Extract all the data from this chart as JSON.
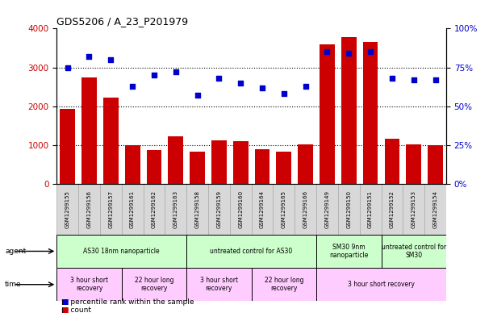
{
  "title": "GDS5206 / A_23_P201979",
  "samples": [
    "GSM1299155",
    "GSM1299156",
    "GSM1299157",
    "GSM1299161",
    "GSM1299162",
    "GSM1299163",
    "GSM1299158",
    "GSM1299159",
    "GSM1299160",
    "GSM1299164",
    "GSM1299165",
    "GSM1299166",
    "GSM1299149",
    "GSM1299150",
    "GSM1299151",
    "GSM1299152",
    "GSM1299153",
    "GSM1299154"
  ],
  "counts": [
    1930,
    2750,
    2220,
    990,
    870,
    1220,
    820,
    1130,
    1100,
    900,
    820,
    1010,
    3600,
    3780,
    3660,
    1160,
    1010,
    990
  ],
  "percentiles": [
    75,
    82,
    80,
    63,
    70,
    72,
    57,
    68,
    65,
    62,
    58,
    63,
    85,
    84,
    85,
    68,
    67,
    67
  ],
  "bar_color": "#cc0000",
  "dot_color": "#0000cc",
  "left_ylim": [
    0,
    4000
  ],
  "right_ylim": [
    0,
    100
  ],
  "left_yticks": [
    0,
    1000,
    2000,
    3000,
    4000
  ],
  "right_yticks": [
    0,
    25,
    50,
    75,
    100
  ],
  "right_yticklabels": [
    "0%",
    "25%",
    "50%",
    "75%",
    "100%"
  ],
  "agent_groups": [
    {
      "label": "AS30 18nm nanoparticle",
      "start": 0,
      "end": 5,
      "color": "#ccffcc"
    },
    {
      "label": "untreated control for AS30",
      "start": 6,
      "end": 11,
      "color": "#ccffcc"
    },
    {
      "label": "SM30 9nm\nnanoparticle",
      "start": 12,
      "end": 14,
      "color": "#ccffcc"
    },
    {
      "label": "untreated control for\nSM30",
      "start": 15,
      "end": 17,
      "color": "#ccffcc"
    }
  ],
  "time_groups": [
    {
      "label": "3 hour short\nrecovery",
      "start": 0,
      "end": 2,
      "color": "#ffccff"
    },
    {
      "label": "22 hour long\nrecovery",
      "start": 3,
      "end": 5,
      "color": "#ffccff"
    },
    {
      "label": "3 hour short\nrecovery",
      "start": 6,
      "end": 8,
      "color": "#ffccff"
    },
    {
      "label": "22 hour long\nrecovery",
      "start": 9,
      "end": 11,
      "color": "#ffccff"
    },
    {
      "label": "3 hour short recovery",
      "start": 12,
      "end": 17,
      "color": "#ffccff"
    }
  ],
  "bg_color": "#ffffff",
  "sample_box_color": "#d8d8d8",
  "legend_items": [
    {
      "color": "#cc0000",
      "label": "count"
    },
    {
      "color": "#0000cc",
      "label": "percentile rank within the sample"
    }
  ]
}
